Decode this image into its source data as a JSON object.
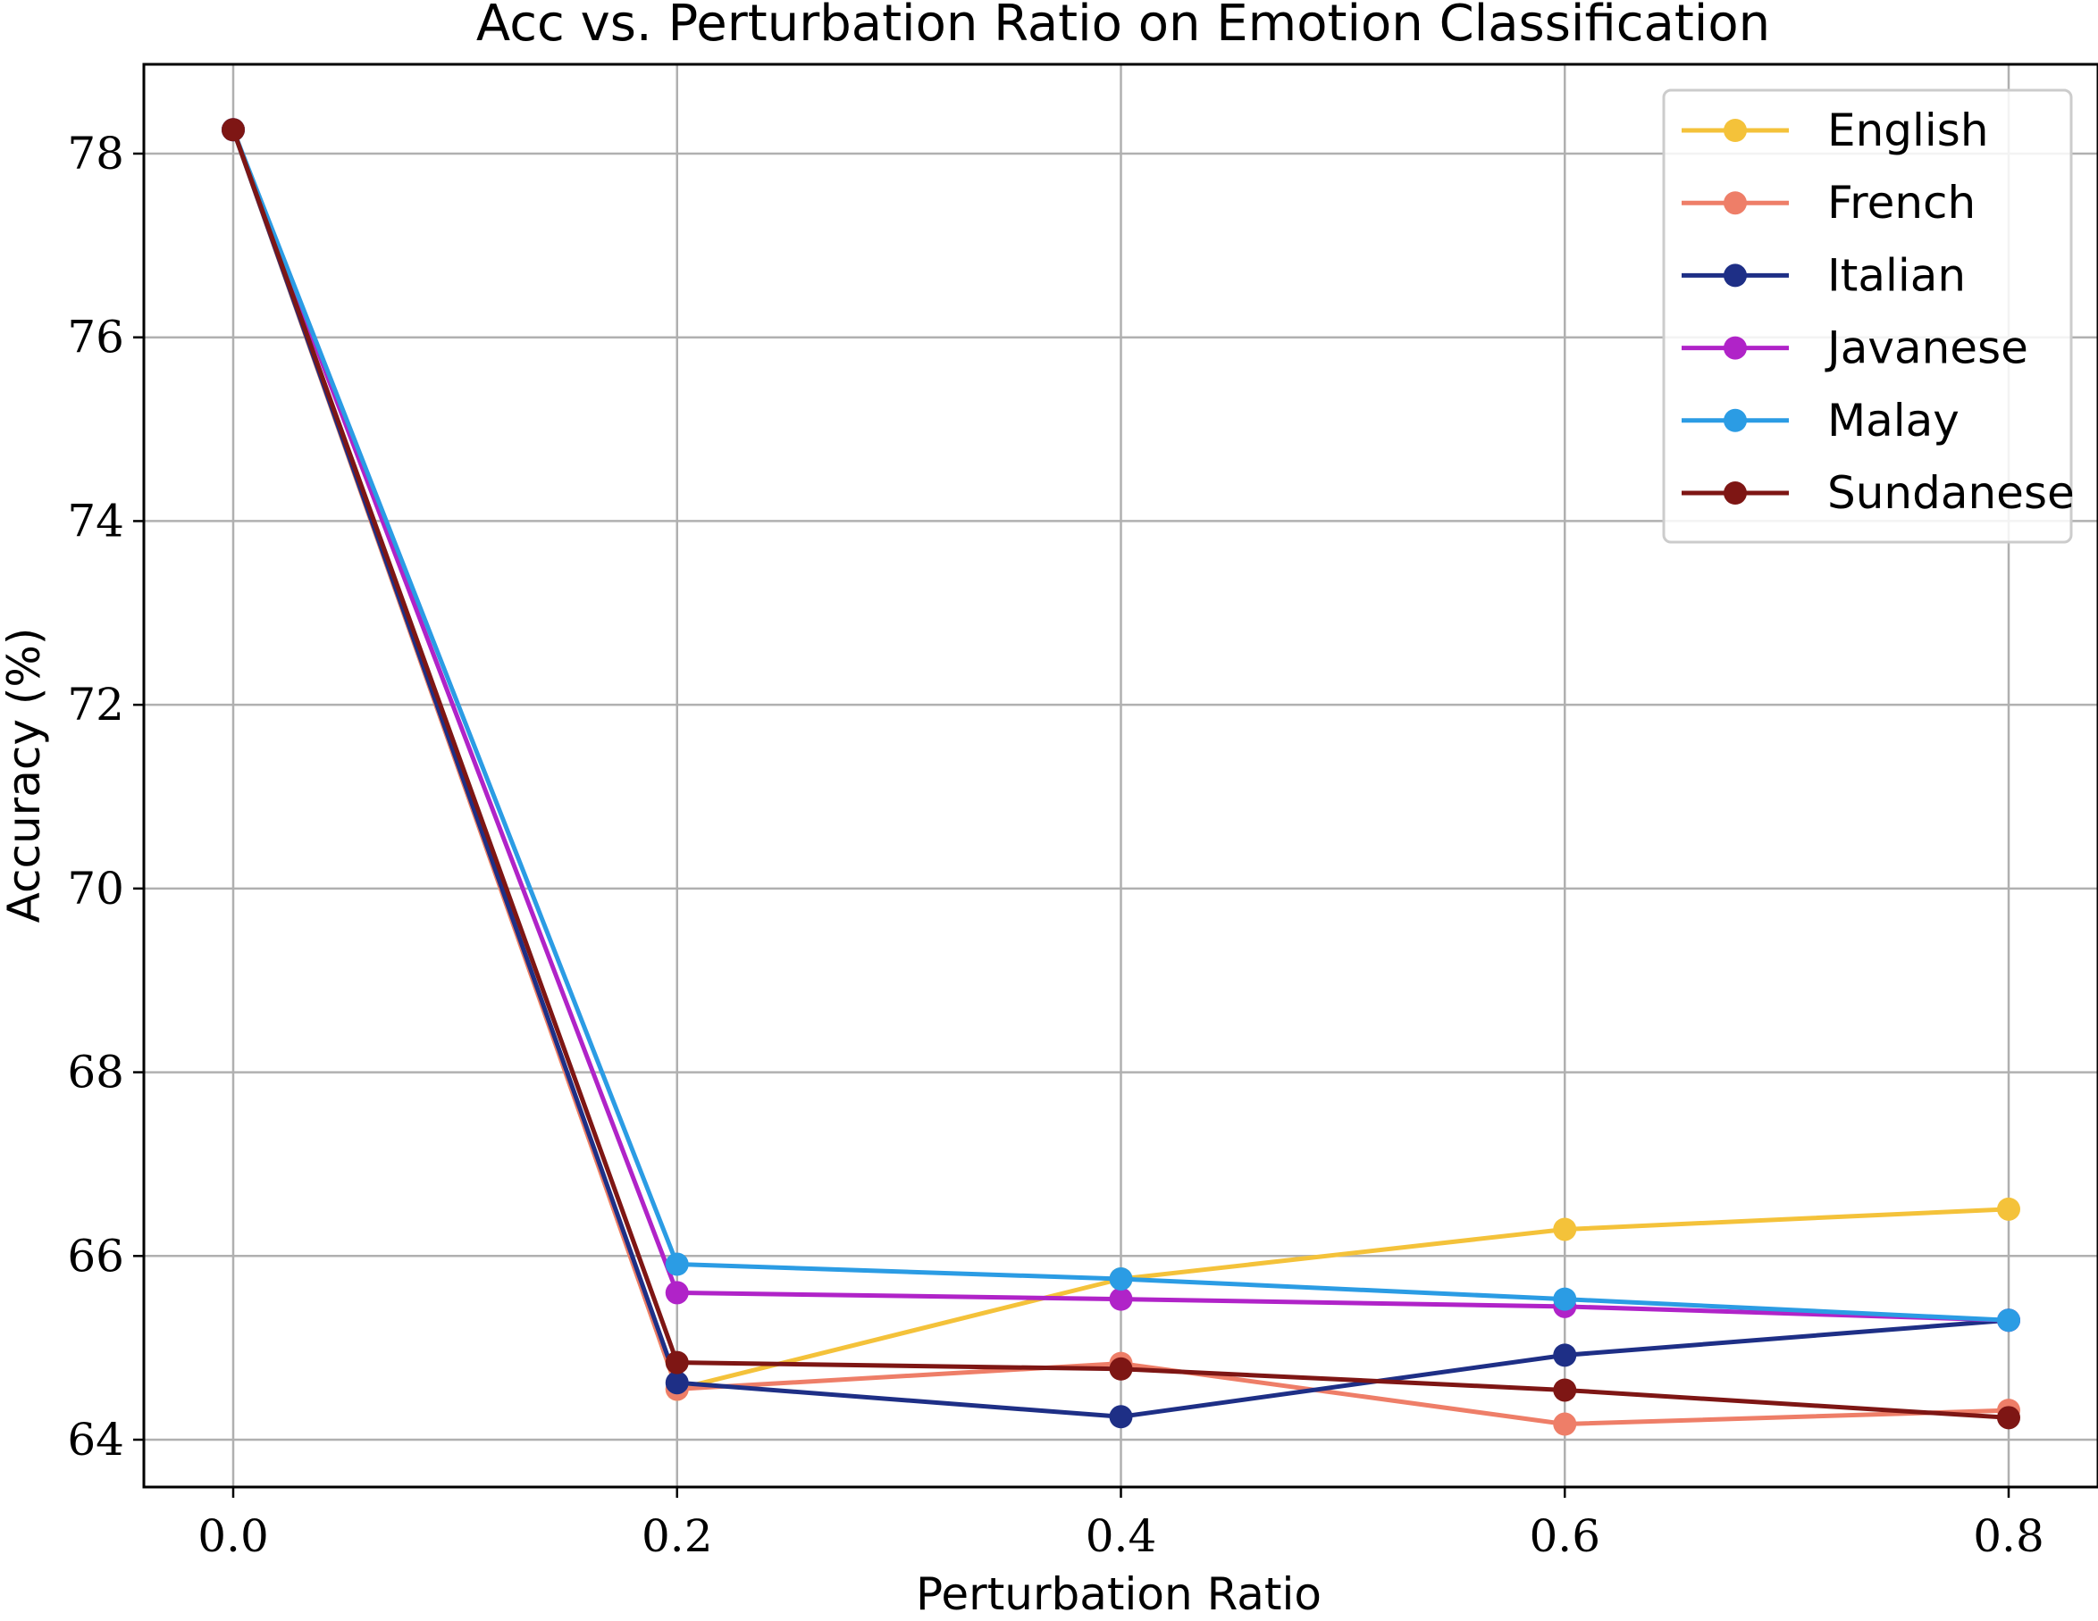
{
  "chart_data": {
    "type": "line",
    "title": "Acc vs. Perturbation Ratio on Emotion Classification",
    "xlabel": "Perturbation Ratio",
    "ylabel": "Accuracy (%)",
    "x": [
      0.0,
      0.2,
      0.4,
      0.6,
      0.8
    ],
    "x_ticks": [
      "0.0",
      "0.2",
      "0.4",
      "0.6",
      "0.8"
    ],
    "y_ticks": [
      "64",
      "66",
      "68",
      "70",
      "72",
      "74",
      "76",
      "78"
    ],
    "xlim": [
      -0.04,
      0.84
    ],
    "ylim": [
      63.5,
      78.97
    ],
    "grid": true,
    "legend_position": "top-right",
    "series": [
      {
        "name": "English",
        "color": "#F4C23A",
        "values": [
          78.26,
          64.55,
          65.75,
          66.29,
          66.51
        ]
      },
      {
        "name": "French",
        "color": "#EE7E68",
        "values": [
          78.26,
          64.55,
          64.83,
          64.17,
          64.32
        ]
      },
      {
        "name": "Italian",
        "color": "#1E2F86",
        "values": [
          78.26,
          64.62,
          64.25,
          64.92,
          65.3
        ]
      },
      {
        "name": "Javanese",
        "color": "#B023C8",
        "values": [
          78.26,
          65.6,
          65.53,
          65.45,
          65.3
        ]
      },
      {
        "name": "Malay",
        "color": "#2B9CE4",
        "values": [
          78.26,
          65.91,
          65.75,
          65.53,
          65.3
        ]
      },
      {
        "name": "Sundanese",
        "color": "#7E1614",
        "values": [
          78.26,
          64.84,
          64.77,
          64.54,
          64.24
        ]
      }
    ]
  }
}
